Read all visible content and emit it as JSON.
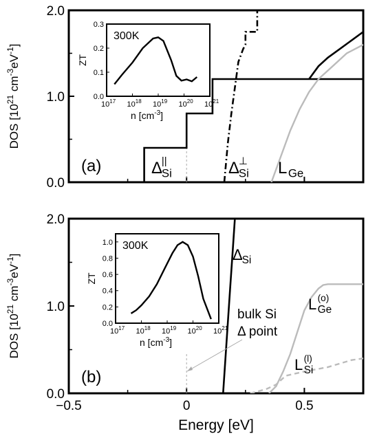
{
  "chart_data": [
    {
      "type": "line",
      "panel_label": "(a)",
      "xlim": [
        -0.5,
        0.75
      ],
      "ylim": [
        0,
        2.0
      ],
      "ylabel": "DOS [10^21 cm^-3 eV^-1]",
      "yticks": [
        "0.0",
        "1.0",
        "2.0"
      ],
      "series": [
        {
          "name": "Δ∥ Si",
          "style": "solid",
          "color": "#000000",
          "x": [
            -0.18,
            -0.18,
            0.0,
            0.0,
            0.11,
            0.11,
            0.34,
            0.34,
            0.52,
            0.52,
            0.75
          ],
          "y": [
            0.0,
            0.4,
            0.4,
            0.8,
            0.8,
            1.2,
            1.2,
            1.2,
            1.2,
            1.2,
            1.2
          ]
        },
        {
          "name": "Δ⊥ Si",
          "style": "dashdot",
          "color": "#000000",
          "x": [
            0.16,
            0.175,
            0.19,
            0.205,
            0.22,
            0.24,
            0.25,
            0.25,
            0.3,
            0.3,
            0.34
          ],
          "y": [
            0.0,
            0.45,
            0.8,
            1.1,
            1.4,
            1.55,
            1.6,
            1.75,
            1.75,
            2.0,
            2.0
          ]
        },
        {
          "name": "L Ge",
          "style": "solid",
          "color": "#bbbbbb",
          "x": [
            0.36,
            0.4,
            0.44,
            0.48,
            0.52,
            0.56,
            0.62,
            0.68,
            0.75
          ],
          "y": [
            0.0,
            0.3,
            0.6,
            0.85,
            1.05,
            1.2,
            1.35,
            1.5,
            1.6
          ]
        },
        {
          "name": "",
          "style": "solid",
          "color": "#000000",
          "x": [
            0.52,
            0.56,
            0.6,
            0.65,
            0.7,
            0.75
          ],
          "y": [
            1.2,
            1.35,
            1.45,
            1.55,
            1.65,
            1.75
          ]
        }
      ],
      "labels": {
        "delta_par": "Δ",
        "delta_par_sup": "||",
        "delta_par_sub": "Si",
        "delta_perp": "Δ",
        "delta_perp_sup": "⊥",
        "delta_perp_sub": "Si",
        "lge": "L",
        "lge_sub": "Ge"
      },
      "inset": {
        "type": "line",
        "annotation": "300K",
        "ylabel": "ZT",
        "xlabel": "n [cm^-3]",
        "xscale": "log",
        "xlim_exp": [
          17,
          21
        ],
        "ylim": [
          0,
          0.3
        ],
        "yticks": [
          "0.0",
          "0.1",
          "0.2",
          "0.3"
        ],
        "xtick_exps": [
          "17",
          "18",
          "19",
          "20",
          "21"
        ],
        "x_exp": [
          17.3,
          17.6,
          18.0,
          18.4,
          18.8,
          19.0,
          19.2,
          19.5,
          19.7,
          19.9,
          20.1,
          20.3,
          20.5
        ],
        "y": [
          0.05,
          0.09,
          0.14,
          0.2,
          0.24,
          0.245,
          0.23,
          0.15,
          0.085,
          0.065,
          0.07,
          0.062,
          0.08
        ]
      }
    },
    {
      "type": "line",
      "panel_label": "(b)",
      "xlim": [
        -0.5,
        0.75
      ],
      "ylim": [
        0,
        2.0
      ],
      "ylabel": "DOS [10^21 cm^-3 eV^-1]",
      "xlabel": "Energy [eV]",
      "yticks": [
        "0.0",
        "1.0",
        "2.0"
      ],
      "xticks": [
        "-0.5",
        "0",
        "0.5"
      ],
      "series": [
        {
          "name": "Δ Si",
          "style": "solid",
          "color": "#000000",
          "x": [
            0.155,
            0.165,
            0.175,
            0.185,
            0.195,
            0.205
          ],
          "y": [
            0.0,
            0.4,
            0.8,
            1.2,
            1.6,
            2.0
          ]
        },
        {
          "name": "L Ge (o)",
          "style": "solid",
          "color": "#bbbbbb",
          "x": [
            0.35,
            0.38,
            0.41,
            0.44,
            0.47,
            0.5,
            0.53,
            0.56,
            0.58,
            0.6,
            0.75
          ],
          "y": [
            0.0,
            0.08,
            0.25,
            0.45,
            0.7,
            0.95,
            1.1,
            1.2,
            1.24,
            1.25,
            1.25
          ]
        },
        {
          "name": "L Si (l)",
          "style": "dashed",
          "color": "#bbbbbb",
          "x": [
            0.27,
            0.3,
            0.34,
            0.38,
            0.4,
            0.42,
            0.5,
            0.6,
            0.7,
            0.75
          ],
          "y": [
            0.0,
            0.02,
            0.05,
            0.1,
            0.15,
            0.2,
            0.25,
            0.3,
            0.38,
            0.4
          ]
        }
      ],
      "labels": {
        "delta": "Δ",
        "delta_sub": "Si",
        "lge": "L",
        "lge_sup": "(o)",
        "lge_sub": "Ge",
        "lsi": "L",
        "lsi_sup": "(l)",
        "lsi_sub": "Si",
        "bulk_line1": "bulk Si",
        "bulk_line2": "Δ point"
      },
      "inset": {
        "type": "line",
        "annotation": "300K",
        "ylabel": "ZT",
        "xlabel": "n [cm^-3]",
        "xscale": "log",
        "xlim_exp": [
          17,
          21
        ],
        "ylim": [
          0,
          1.1
        ],
        "yticks": [
          "0.0",
          "0.2",
          "0.4",
          "0.6",
          "0.8",
          "1.0"
        ],
        "xtick_exps": [
          "17",
          "18",
          "19",
          "20",
          "21"
        ],
        "x_exp": [
          17.6,
          17.8,
          18.0,
          18.3,
          18.6,
          18.9,
          19.2,
          19.4,
          19.6,
          19.8,
          20.0,
          20.2,
          20.4,
          20.7
        ],
        "y": [
          0.12,
          0.16,
          0.22,
          0.33,
          0.48,
          0.67,
          0.86,
          0.96,
          1.0,
          0.96,
          0.82,
          0.58,
          0.3,
          0.05
        ]
      }
    }
  ]
}
